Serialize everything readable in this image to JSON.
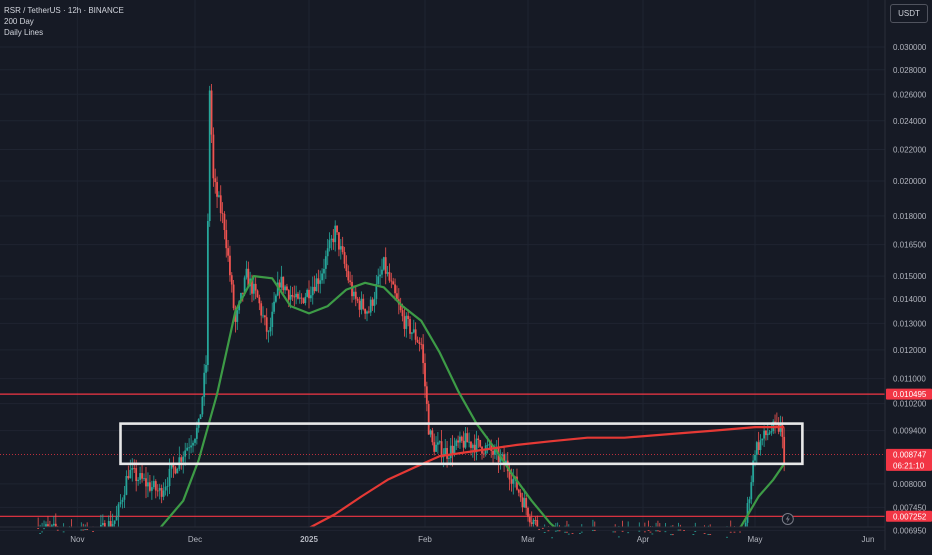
{
  "header": {
    "symbol_line": "RSR / TetherUS · 12h · BINANCE",
    "indicator_1": "200 Day",
    "indicator_2": "Daily Lines"
  },
  "currency_badge": "USDT",
  "colors": {
    "background": "#161a25",
    "grid": "#1f2431",
    "axis_text": "#b2b5be",
    "candle_up": "#26a69a",
    "candle_down": "#ef5350",
    "ma_green": "#3d9b46",
    "ma_red": "#e53935",
    "level_line": "#f23645",
    "zone_box": "#e8e8e8",
    "price_badge": "#f23645"
  },
  "chart_data": {
    "type": "candlestick",
    "title": "RSR / TetherUS · 12h · BINANCE",
    "y_axis": {
      "ticks": [
        "0.030000",
        "0.028000",
        "0.026000",
        "0.024000",
        "0.022000",
        "0.020000",
        "0.018000",
        "0.016500",
        "0.015000",
        "0.014000",
        "0.013000",
        "0.012000",
        "0.011000",
        "0.010200",
        "0.009400",
        "0.008000",
        "0.007450",
        "0.006950"
      ],
      "scale": "log",
      "range": [
        0.0068,
        0.0315
      ]
    },
    "x_axis": {
      "ticks": [
        "Nov",
        "Dec",
        "2025",
        "Feb",
        "Mar",
        "Apr",
        "May",
        "Jun"
      ]
    },
    "horizontal_levels": [
      {
        "value": 0.010495,
        "label": "0.010495"
      },
      {
        "value": 0.007252,
        "label": "0.007252"
      }
    ],
    "current_price": {
      "value": 0.008747,
      "label": "0.008747",
      "countdown": "06:21:10"
    },
    "zone": {
      "x_start": "Nov 12",
      "x_end": "May 14",
      "y_low": 0.0085,
      "y_high": 0.0096
    },
    "ma_green_points": [
      [
        "Nov 12",
        0.006
      ],
      [
        "Nov 20",
        0.0068
      ],
      [
        "Nov 28",
        0.0076
      ],
      [
        "Dec 2",
        0.0086
      ],
      [
        "Dec 7",
        0.0105
      ],
      [
        "Dec 12",
        0.0135
      ],
      [
        "Dec 17",
        0.015
      ],
      [
        "Dec 22",
        0.0149
      ],
      [
        "Dec 27",
        0.0137
      ],
      [
        "Jan 1",
        0.0134
      ],
      [
        "Jan 6",
        0.0137
      ],
      [
        "Jan 11",
        0.0144
      ],
      [
        "Jan 16",
        0.0147
      ],
      [
        "Jan 21",
        0.0145
      ],
      [
        "Jan 26",
        0.0137
      ],
      [
        "Jan 31",
        0.0131
      ],
      [
        "Feb 5",
        0.0119
      ],
      [
        "Feb 10",
        0.0106
      ],
      [
        "Feb 15",
        0.0096
      ],
      [
        "Feb 20",
        0.0089
      ],
      [
        "Feb 25",
        0.0082
      ],
      [
        "Mar 2",
        0.0076
      ],
      [
        "Mar 7",
        0.0071
      ],
      [
        "Mar 10",
        0.0069
      ],
      [
        "Apr 27",
        0.007
      ],
      [
        "May 2",
        0.0077
      ],
      [
        "May 6",
        0.0081
      ],
      [
        "May 9",
        0.0085
      ]
    ],
    "ma_red_points": [
      [
        "Dec 24",
        0.0068
      ],
      [
        "Jan 1",
        0.007
      ],
      [
        "Jan 8",
        0.0073
      ],
      [
        "Jan 15",
        0.0077
      ],
      [
        "Jan 22",
        0.0081
      ],
      [
        "Jan 29",
        0.0084
      ],
      [
        "Feb 5",
        0.0087
      ],
      [
        "Feb 12",
        0.0088
      ],
      [
        "Feb 19",
        0.0089
      ],
      [
        "Feb 26",
        0.009
      ],
      [
        "Mar 7",
        0.0091
      ],
      [
        "Mar 17",
        0.0092
      ],
      [
        "Mar 27",
        0.0092
      ],
      [
        "Apr 8",
        0.0093
      ],
      [
        "Apr 20",
        0.0094
      ],
      [
        "May 1",
        0.0095
      ],
      [
        "May 9",
        0.0095
      ]
    ]
  }
}
